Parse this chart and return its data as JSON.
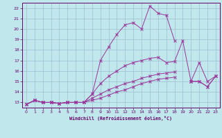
{
  "xlabel": "Windchill (Refroidissement éolien,°C)",
  "background_color": "#c0e8ec",
  "grid_color": "#a0bcd0",
  "line_color": "#993399",
  "tick_color": "#660066",
  "xlim": [
    -0.5,
    23.5
  ],
  "ylim": [
    12.5,
    22.5
  ],
  "xticks": [
    0,
    1,
    2,
    3,
    4,
    5,
    6,
    7,
    8,
    9,
    10,
    11,
    12,
    13,
    14,
    15,
    16,
    17,
    18,
    19,
    20,
    21,
    22,
    23
  ],
  "yticks": [
    13,
    14,
    15,
    16,
    17,
    18,
    19,
    20,
    21,
    22
  ],
  "lines": [
    {
      "x": [
        0,
        1,
        2,
        3,
        4,
        5,
        6,
        7,
        8,
        9,
        10,
        11,
        12,
        13,
        14,
        15,
        16,
        17,
        18
      ],
      "y": [
        12.8,
        13.2,
        13.0,
        13.0,
        12.9,
        13.0,
        13.0,
        13.0,
        13.8,
        17.0,
        18.3,
        19.5,
        20.4,
        20.6,
        20.0,
        22.2,
        21.5,
        21.3,
        18.9
      ]
    },
    {
      "x": [
        0,
        1,
        2,
        3,
        4,
        5,
        6,
        7,
        8,
        9,
        10,
        11,
        12,
        13,
        14,
        15,
        16,
        17,
        18,
        19,
        20,
        21,
        22,
        23
      ],
      "y": [
        12.8,
        13.2,
        13.0,
        13.0,
        12.9,
        13.0,
        13.0,
        13.0,
        13.8,
        14.8,
        15.5,
        16.0,
        16.5,
        16.8,
        17.0,
        17.2,
        17.3,
        16.8,
        16.9,
        18.9,
        15.0,
        16.8,
        15.0,
        15.5
      ]
    },
    {
      "x": [
        0,
        1,
        2,
        3,
        4,
        5,
        6,
        7,
        8,
        9,
        10,
        11,
        12,
        13,
        14,
        15,
        16,
        17,
        18,
        19,
        20,
        21,
        22,
        23
      ],
      "y": [
        12.8,
        13.2,
        13.0,
        13.0,
        12.9,
        13.0,
        13.0,
        13.0,
        13.4,
        13.8,
        14.2,
        14.5,
        14.8,
        15.0,
        15.3,
        15.5,
        15.7,
        15.8,
        15.9,
        null,
        15.0,
        15.0,
        14.5,
        15.5
      ]
    },
    {
      "x": [
        0,
        1,
        2,
        3,
        4,
        5,
        6,
        7,
        8,
        9,
        10,
        11,
        12,
        13,
        14,
        15,
        16,
        17,
        18,
        19,
        20,
        21,
        22,
        23
      ],
      "y": [
        12.8,
        13.2,
        13.0,
        13.0,
        12.9,
        13.0,
        13.0,
        13.0,
        13.2,
        13.4,
        13.7,
        14.0,
        14.2,
        14.5,
        14.8,
        15.0,
        15.2,
        15.3,
        15.4,
        null,
        15.0,
        15.0,
        14.5,
        15.5
      ]
    }
  ]
}
